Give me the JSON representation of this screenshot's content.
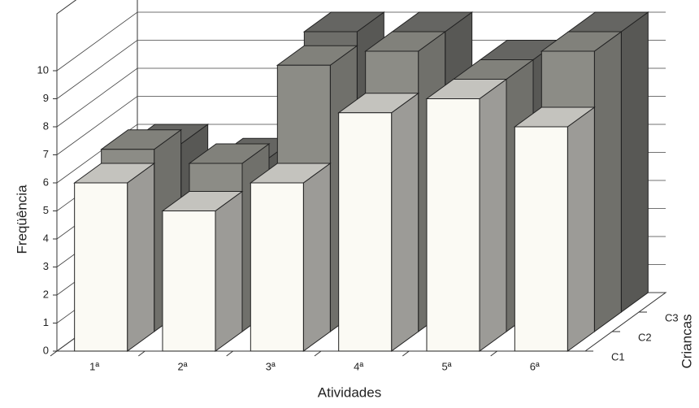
{
  "chart_data": {
    "type": "bar3d",
    "x_label": "Atividades",
    "y_label": "Freqüência",
    "z_label": "Criancas",
    "categories": [
      "1ª",
      "2ª",
      "3ª",
      "4ª",
      "5ª",
      "6ª"
    ],
    "series": [
      {
        "name": "C1",
        "color": "#fbfaf4",
        "values": [
          6,
          5,
          6,
          8.5,
          9,
          8
        ]
      },
      {
        "name": "C2",
        "color": "#8c8c86",
        "values": [
          6.5,
          6,
          9.5,
          10,
          9,
          10
        ]
      },
      {
        "name": "C3",
        "color": "#6e6e6a",
        "values": [
          6,
          5.5,
          10,
          10,
          9,
          10
        ]
      }
    ],
    "ylim": [
      0,
      10
    ],
    "yticks": [
      0,
      1,
      2,
      3,
      4,
      5,
      6,
      7,
      8,
      9,
      10
    ],
    "grid": true
  }
}
